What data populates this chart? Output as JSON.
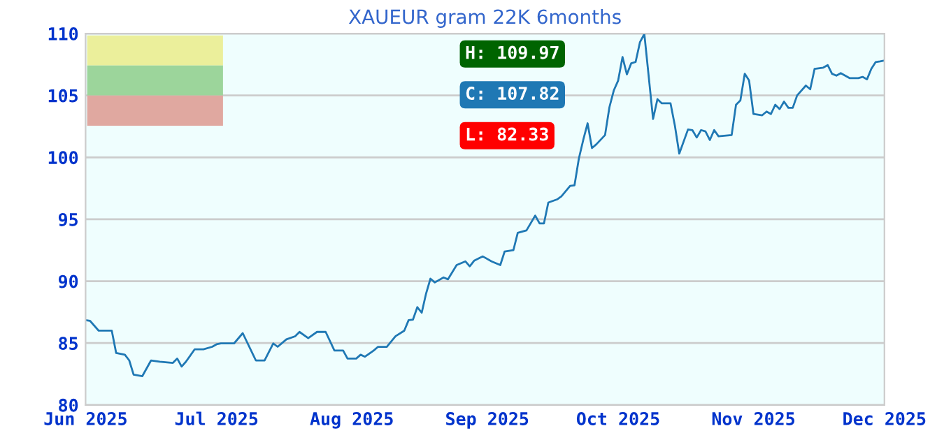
{
  "chart_data": {
    "type": "line",
    "title": "XAUEUR gram 22K 6months",
    "x": [
      "2025-06-01",
      "2025-06-02",
      "2025-06-04",
      "2025-06-07",
      "2025-06-08",
      "2025-06-10",
      "2025-06-11",
      "2025-06-12",
      "2025-06-14",
      "2025-06-16",
      "2025-06-18",
      "2025-06-21",
      "2025-06-22",
      "2025-06-23",
      "2025-06-24",
      "2025-06-26",
      "2025-06-28",
      "2025-06-30",
      "2025-07-01",
      "2025-07-02",
      "2025-07-05",
      "2025-07-07",
      "2025-07-10",
      "2025-07-12",
      "2025-07-14",
      "2025-07-15",
      "2025-07-17",
      "2025-07-19",
      "2025-07-20",
      "2025-07-22",
      "2025-07-24",
      "2025-07-26",
      "2025-07-28",
      "2025-07-30",
      "2025-07-31",
      "2025-08-02",
      "2025-08-03",
      "2025-08-04",
      "2025-08-06",
      "2025-08-07",
      "2025-08-09",
      "2025-08-11",
      "2025-08-13",
      "2025-08-14",
      "2025-08-15",
      "2025-08-16",
      "2025-08-17",
      "2025-08-18",
      "2025-08-19",
      "2025-08-20",
      "2025-08-22",
      "2025-08-23",
      "2025-08-25",
      "2025-08-27",
      "2025-08-28",
      "2025-08-29",
      "2025-08-31",
      "2025-09-02",
      "2025-09-04",
      "2025-09-05",
      "2025-09-07",
      "2025-09-08",
      "2025-09-10",
      "2025-09-12",
      "2025-09-13",
      "2025-09-14",
      "2025-09-15",
      "2025-09-17",
      "2025-09-18",
      "2025-09-20",
      "2025-09-21",
      "2025-09-22",
      "2025-09-23",
      "2025-09-24",
      "2025-09-25",
      "2025-09-26",
      "2025-09-28",
      "2025-09-29",
      "2025-09-30",
      "2025-10-01",
      "2025-10-02",
      "2025-10-03",
      "2025-10-04",
      "2025-10-05",
      "2025-10-06",
      "2025-10-07",
      "2025-10-09",
      "2025-10-10",
      "2025-10-11",
      "2025-10-13",
      "2025-10-14",
      "2025-10-15",
      "2025-10-17",
      "2025-10-18",
      "2025-10-19",
      "2025-10-20",
      "2025-10-21",
      "2025-10-22",
      "2025-10-23",
      "2025-10-24",
      "2025-10-27",
      "2025-10-28",
      "2025-10-29",
      "2025-10-30",
      "2025-10-31",
      "2025-11-01",
      "2025-11-03",
      "2025-11-04",
      "2025-11-05",
      "2025-11-06",
      "2025-11-07",
      "2025-11-08",
      "2025-11-09",
      "2025-11-10",
      "2025-11-11",
      "2025-11-13",
      "2025-11-14",
      "2025-11-15",
      "2025-11-17",
      "2025-11-18",
      "2025-11-19",
      "2025-11-20",
      "2025-11-21",
      "2025-11-23",
      "2025-11-25",
      "2025-11-26",
      "2025-11-27",
      "2025-11-28",
      "2025-11-29",
      "2025-11-30",
      "2025-12-01"
    ],
    "series": [
      {
        "color": "#1f78b4",
        "values": [
          86.85,
          86.8,
          86.0,
          86.0,
          84.2,
          84.06,
          83.6,
          82.45,
          82.33,
          83.6,
          83.5,
          83.4,
          83.75,
          83.1,
          83.5,
          84.5,
          84.5,
          84.7,
          84.9,
          84.97,
          84.97,
          85.8,
          83.6,
          83.6,
          84.97,
          84.7,
          85.3,
          85.55,
          85.9,
          85.4,
          85.9,
          85.9,
          84.4,
          84.4,
          83.75,
          83.75,
          84.06,
          83.9,
          84.4,
          84.7,
          84.7,
          85.55,
          86.0,
          86.85,
          86.9,
          87.9,
          87.45,
          89.0,
          90.2,
          89.9,
          90.3,
          90.15,
          91.3,
          91.6,
          91.2,
          91.65,
          92.0,
          91.6,
          91.3,
          92.4,
          92.5,
          93.9,
          94.1,
          95.3,
          94.66,
          94.66,
          96.35,
          96.6,
          96.85,
          97.7,
          97.74,
          99.9,
          101.4,
          102.75,
          100.75,
          101.05,
          101.8,
          104.05,
          105.4,
          106.2,
          108.1,
          106.7,
          107.6,
          107.7,
          109.3,
          109.97,
          103.1,
          104.7,
          104.36,
          104.36,
          102.55,
          100.3,
          102.25,
          102.2,
          101.6,
          102.2,
          102.1,
          101.4,
          102.2,
          101.7,
          101.8,
          104.25,
          104.6,
          106.75,
          106.2,
          103.5,
          103.4,
          103.7,
          103.5,
          104.25,
          103.9,
          104.5,
          104.0,
          104.0,
          105.0,
          105.8,
          105.5,
          107.15,
          107.25,
          107.45,
          106.75,
          106.6,
          106.8,
          106.4,
          106.4,
          106.5,
          106.3,
          107.15,
          107.7,
          107.75,
          107.82
        ]
      }
    ],
    "xlim": [
      "2025-06-01",
      "2025-12-01"
    ],
    "xticks": [
      {
        "value": "2025-06-01",
        "label": "Jun 2025"
      },
      {
        "value": "2025-07-01",
        "label": "Jul 2025"
      },
      {
        "value": "2025-08-01",
        "label": "Aug 2025"
      },
      {
        "value": "2025-09-01",
        "label": "Sep 2025"
      },
      {
        "value": "2025-10-01",
        "label": "Oct 2025"
      },
      {
        "value": "2025-11-01",
        "label": "Nov 2025"
      },
      {
        "value": "2025-12-01",
        "label": "Dec 2025"
      }
    ],
    "ylim": [
      80,
      110
    ],
    "yticks": [
      80,
      85,
      90,
      95,
      100,
      105,
      110
    ],
    "grid": "y",
    "marker": "none",
    "line_style": "solid",
    "annotations": [
      "H: 109.97",
      "C: 107.82",
      "L: 82.33"
    ]
  }
}
